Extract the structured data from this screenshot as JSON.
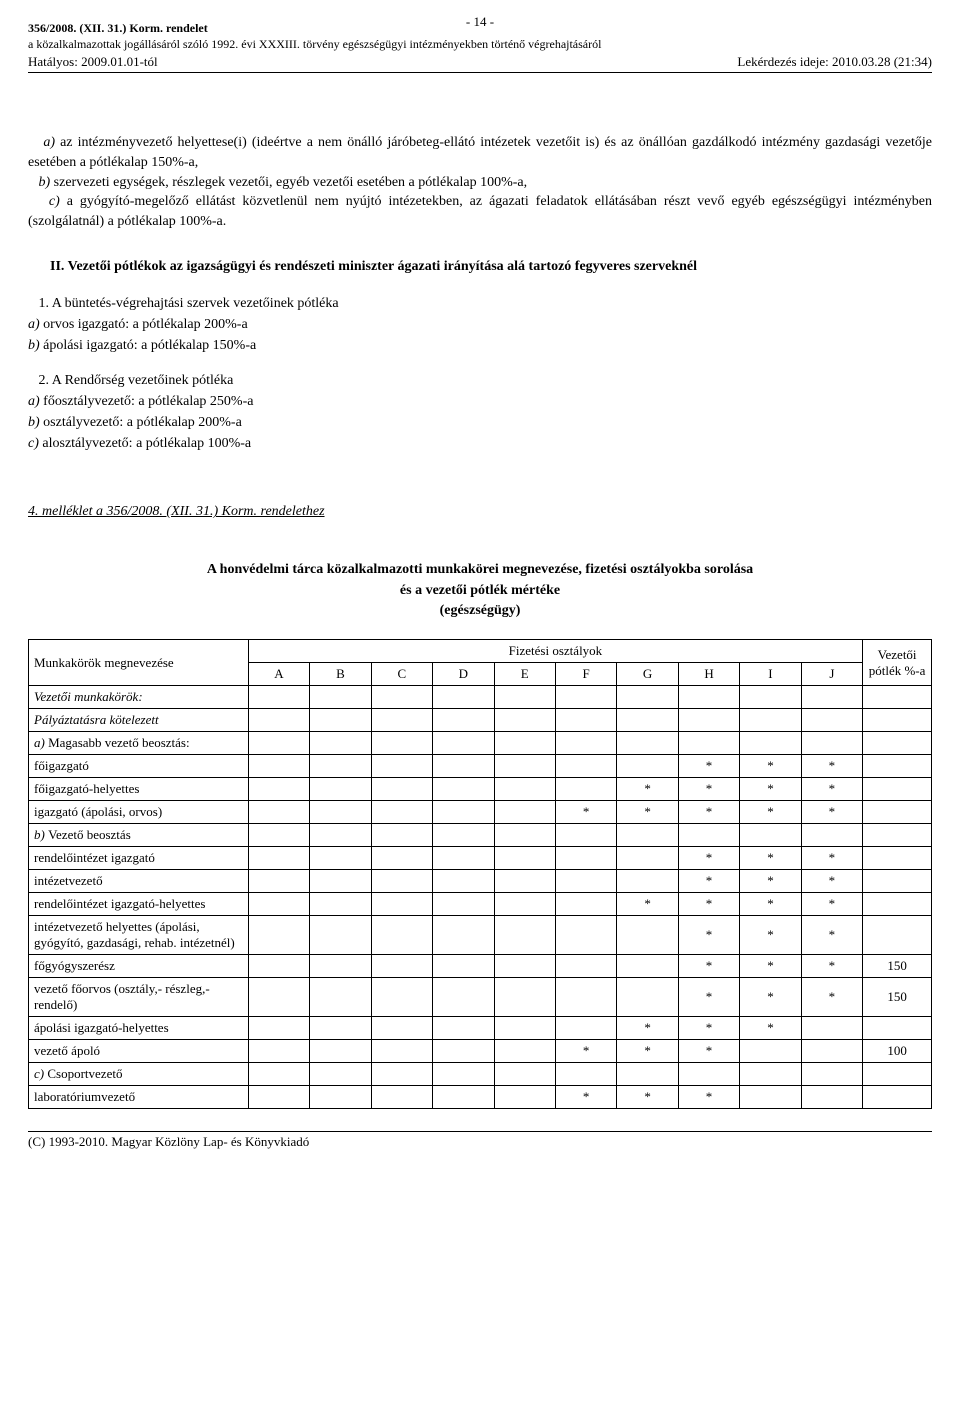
{
  "header": {
    "decree": "356/2008. (XII. 31.) Korm. rendelet",
    "subtitle": "a közalkalmazottak jogállásáról szóló 1992. évi XXXIII. törvény egészségügyi intézményekben történő végrehajtásáról",
    "effective": "Hatályos: 2009.01.01-tól",
    "page": "- 14 -",
    "query": "Lekérdezés ideje: 2010.03.28 (21:34)"
  },
  "paragraph_a_prefix": "a) ",
  "paragraph_a": "az intézményvezető helyettese(i) (ideértve a nem önálló járóbeteg-ellátó intézetek vezetőit is) és az önállóan gazdálkodó intézmény gazdasági vezetője esetében a pótlékalap 150%-a,",
  "paragraph_b_prefix": "b) ",
  "paragraph_b": "szervezeti egységek, részlegek vezetői, egyéb vezetői esetében a pótlékalap 100%-a,",
  "paragraph_c_prefix": "c) ",
  "paragraph_c": "a gyógyító-megelőző ellátást közvetlenül nem nyújtó intézetekben, az ágazati feladatok ellátásában részt vevő egyéb egészségügyi intézményben (szolgálatnál) a pótlékalap 100%-a.",
  "section_II": "II. Vezetői pótlékok az igazságügyi és rendészeti miniszter ágazati irányítása alá tartozó fegyveres szerveknél",
  "list1": {
    "title": "1. A büntetés-végrehajtási szervek vezetőinek pótléka",
    "a_prefix": "a) ",
    "a": "orvos igazgató: a pótlékalap 200%-a",
    "b_prefix": "b) ",
    "b": "ápolási igazgató: a pótlékalap 150%-a"
  },
  "list2": {
    "title": "2. A Rendőrség vezetőinek pótléka",
    "a_prefix": "a) ",
    "a": "főosztályvezető: a pótlékalap 250%-a",
    "b_prefix": "b) ",
    "b": "osztályvezető: a pótlékalap 200%-a",
    "c_prefix": "c) ",
    "c": "alosztályvezető: a pótlékalap 100%-a"
  },
  "melleklet": "4. melléklet a 356/2008. (XII. 31.) Korm. rendelethez",
  "table_heading_l1": "A honvédelmi tárca közalkalmazotti munkakörei megnevezése, fizetési osztályokba sorolása",
  "table_heading_l2": "és a vezetői pótlék mértéke",
  "table_heading_l3": "(egészségügy)",
  "table": {
    "col_name": "Munkakörök megnevezése",
    "col_group": "Fizetési osztályok",
    "col_potlek": "Vezetői pótlék %-a",
    "cols": [
      "A",
      "B",
      "C",
      "D",
      "E",
      "F",
      "G",
      "H",
      "I",
      "J"
    ],
    "rows": [
      {
        "name": "Vezetői munkakörök:",
        "italic": true,
        "marks": [
          "",
          "",
          "",
          "",
          "",
          "",
          "",
          "",
          "",
          ""
        ],
        "pot": ""
      },
      {
        "name": "Pályáztatásra kötelezett",
        "italic": true,
        "marks": [
          "",
          "",
          "",
          "",
          "",
          "",
          "",
          "",
          "",
          ""
        ],
        "pot": ""
      },
      {
        "name": "a) Magasabb vezető beosztás:",
        "italic": false,
        "a_italic": true,
        "marks": [
          "",
          "",
          "",
          "",
          "",
          "",
          "",
          "",
          "",
          ""
        ],
        "pot": ""
      },
      {
        "name": "főigazgató",
        "marks": [
          "",
          "",
          "",
          "",
          "",
          "",
          "",
          "*",
          "*",
          "*"
        ],
        "pot": ""
      },
      {
        "name": "főigazgató-helyettes",
        "marks": [
          "",
          "",
          "",
          "",
          "",
          "",
          "*",
          "*",
          "*",
          "*"
        ],
        "pot": ""
      },
      {
        "name": "igazgató (ápolási, orvos)",
        "marks": [
          "",
          "",
          "",
          "",
          "",
          "*",
          "*",
          "*",
          "*",
          "*"
        ],
        "pot": ""
      },
      {
        "name": "b) Vezető beosztás",
        "b_italic": true,
        "marks": [
          "",
          "",
          "",
          "",
          "",
          "",
          "",
          "",
          "",
          ""
        ],
        "pot": ""
      },
      {
        "name": "rendelőintézet igazgató",
        "marks": [
          "",
          "",
          "",
          "",
          "",
          "",
          "",
          "*",
          "*",
          "*"
        ],
        "pot": ""
      },
      {
        "name": "intézetvezető",
        "marks": [
          "",
          "",
          "",
          "",
          "",
          "",
          "",
          "*",
          "*",
          "*"
        ],
        "pot": ""
      },
      {
        "name": "rendelőintézet igazgató-helyettes",
        "marks": [
          "",
          "",
          "",
          "",
          "",
          "",
          "*",
          "*",
          "*",
          "*"
        ],
        "pot": ""
      },
      {
        "name": "intézetvezető helyettes (ápolási, gyógyító, gazdasági, rehab. intézetnél)",
        "marks": [
          "",
          "",
          "",
          "",
          "",
          "",
          "",
          "*",
          "*",
          "*"
        ],
        "pot": ""
      },
      {
        "name": "főgyógyszerész",
        "marks": [
          "",
          "",
          "",
          "",
          "",
          "",
          "",
          "*",
          "*",
          "*"
        ],
        "pot": "150"
      },
      {
        "name": "vezető főorvos (osztály,- részleg,- rendelő)",
        "marks": [
          "",
          "",
          "",
          "",
          "",
          "",
          "",
          "*",
          "*",
          "*"
        ],
        "pot": "150"
      },
      {
        "name": "ápolási igazgató-helyettes",
        "marks": [
          "",
          "",
          "",
          "",
          "",
          "",
          "*",
          "*",
          "*",
          ""
        ],
        "pot": ""
      },
      {
        "name": "vezető ápoló",
        "marks": [
          "",
          "",
          "",
          "",
          "",
          "*",
          "*",
          "*",
          "",
          ""
        ],
        "pot": "100"
      },
      {
        "name": "c) Csoportvezető",
        "c_italic": true,
        "marks": [
          "",
          "",
          "",
          "",
          "",
          "",
          "",
          "",
          "",
          ""
        ],
        "pot": ""
      },
      {
        "name": "laboratóriumvezető",
        "marks": [
          "",
          "",
          "",
          "",
          "",
          "*",
          "*",
          "*",
          "",
          ""
        ],
        "pot": ""
      }
    ]
  },
  "footer": "(C) 1993-2010. Magyar Közlöny Lap- és Könyvkiadó"
}
